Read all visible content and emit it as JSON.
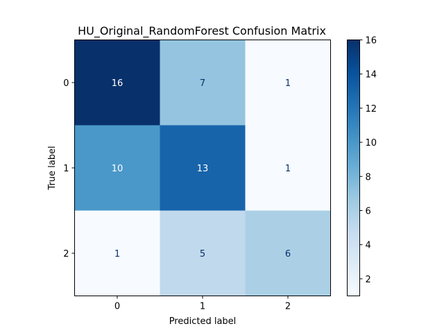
{
  "chart_data": {
    "type": "heatmap",
    "title": "HU_Original_RandomForest Confusion Matrix",
    "xlabel": "Predicted label",
    "ylabel": "True label",
    "x_categories": [
      "0",
      "1",
      "2"
    ],
    "y_categories": [
      "0",
      "1",
      "2"
    ],
    "matrix": [
      [
        16,
        7,
        1
      ],
      [
        10,
        13,
        1
      ],
      [
        1,
        5,
        6
      ]
    ],
    "colormap": "Blues",
    "colorbar": {
      "min": 1,
      "max": 16,
      "ticks": [
        "2",
        "4",
        "6",
        "8",
        "10",
        "12",
        "14",
        "16"
      ]
    },
    "colors": {
      "low": "#f7fbff",
      "high": "#08306b",
      "text_dark": "#08306b",
      "text_light": "#ffffff"
    }
  }
}
